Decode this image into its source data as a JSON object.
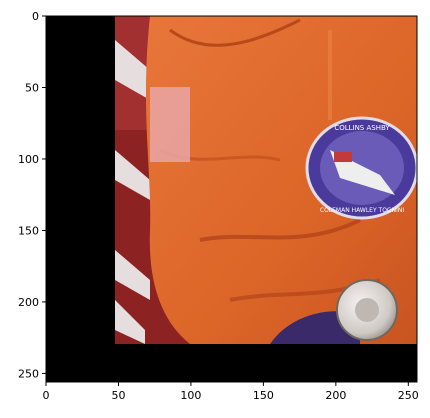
{
  "figure": {
    "type": "image-axes",
    "xlim": [
      0,
      256
    ],
    "ylim": [
      256,
      0
    ],
    "x_ticks": [
      {
        "value": 0,
        "label": "0"
      },
      {
        "value": 50,
        "label": "50"
      },
      {
        "value": 100,
        "label": "100"
      },
      {
        "value": 150,
        "label": "150"
      },
      {
        "value": 200,
        "label": "200"
      },
      {
        "value": 250,
        "label": "250"
      }
    ],
    "y_ticks": [
      {
        "value": 0,
        "label": "0"
      },
      {
        "value": 50,
        "label": "50"
      },
      {
        "value": 100,
        "label": "100"
      },
      {
        "value": 150,
        "label": "150"
      },
      {
        "value": 200,
        "label": "200"
      },
      {
        "value": 250,
        "label": "250"
      }
    ]
  },
  "image": {
    "description_colors": {
      "black_padding": "#000000",
      "suit_orange": "#e06a2a",
      "suit_orange_dark": "#b8481a",
      "flag_red": "#a82a2a",
      "flag_white": "#e9e4e2",
      "patch_purple": "#4a3a9c",
      "glove_purple": "#3a2a6a",
      "metal": "#d8d4d0"
    },
    "patch_text_top": "COLLINS ASHBY",
    "patch_text_bottom": "COLEMAN HAWLEY TOGNINI"
  }
}
